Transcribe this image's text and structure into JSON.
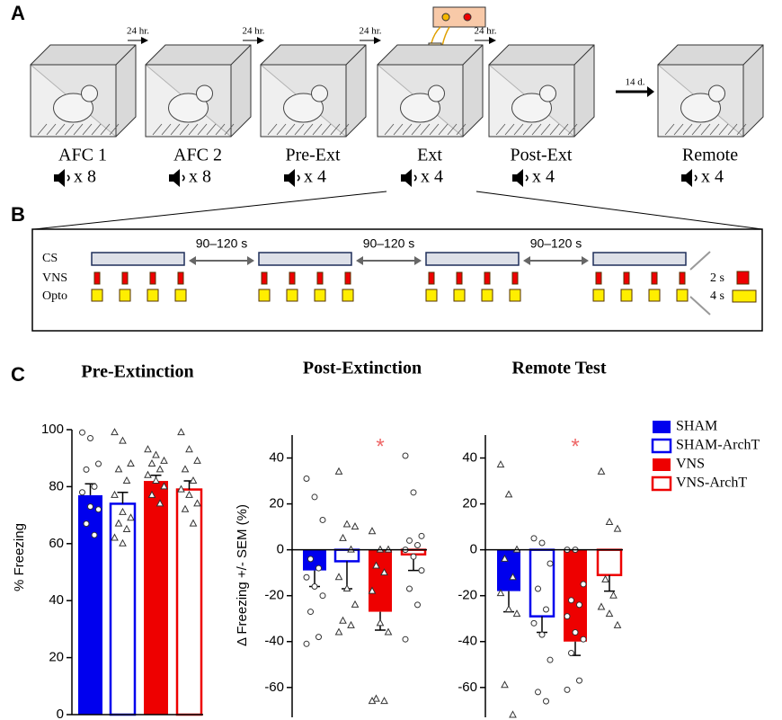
{
  "panels": {
    "a": "A",
    "b": "B",
    "c": "C"
  },
  "sessions": [
    {
      "label": "AFC 1",
      "tones": "x 8"
    },
    {
      "label": "AFC 2",
      "tones": "x 8"
    },
    {
      "label": "Pre-Ext",
      "tones": "x 4"
    },
    {
      "label": "Ext",
      "tones": "x 4"
    },
    {
      "label": "Post-Ext",
      "tones": "x 4"
    },
    {
      "label": "Remote",
      "tones": "x 4"
    }
  ],
  "intervals": [
    "24 hr.",
    "24 hr.",
    "24 hr.",
    "24 hr.",
    "14 d."
  ],
  "protocol": {
    "rows": [
      "CS",
      "VNS",
      "Opto"
    ],
    "iti": [
      "90–120 s",
      "90–120 s",
      "90–120 s"
    ],
    "durations": [
      "2 s",
      "4 s"
    ]
  },
  "chart_data": [
    {
      "type": "bar",
      "title": "Pre-Extinction",
      "ylabel": "% Freezing",
      "ylim": [
        0,
        100
      ],
      "yticks": [
        0,
        20,
        40,
        60,
        80,
        100
      ],
      "legend": false,
      "series": [
        {
          "name": "SHAM",
          "color": "#0000ee",
          "filled": true,
          "marker": "circle",
          "values": [
            77
          ],
          "errors": [
            4
          ],
          "points": [
            99,
            97,
            88,
            86,
            80,
            78,
            73,
            72,
            67,
            63
          ]
        },
        {
          "name": "SHAM-ArchT",
          "color": "#0000ee",
          "filled": false,
          "marker": "triangle",
          "values": [
            74
          ],
          "errors": [
            4
          ],
          "points": [
            99,
            96,
            88,
            86,
            82,
            77,
            71,
            69,
            67,
            65,
            62,
            60
          ]
        },
        {
          "name": "VNS",
          "color": "#ee0000",
          "filled": true,
          "marker": "triangle",
          "values": [
            82
          ],
          "errors": [
            2
          ],
          "points": [
            93,
            91,
            89,
            88,
            86,
            84,
            82,
            80,
            77,
            74
          ]
        },
        {
          "name": "VNS-ArchT",
          "color": "#ee0000",
          "filled": false,
          "marker": "triangle",
          "values": [
            79
          ],
          "errors": [
            3
          ],
          "points": [
            99,
            93,
            89,
            86,
            82,
            79,
            77,
            74,
            72,
            67
          ]
        }
      ]
    },
    {
      "type": "bar",
      "title": "Post-Extinction",
      "ylabel": "Δ Freezing +/- SEM (%)",
      "ylim": [
        -73,
        50
      ],
      "yticks": [
        -60,
        -40,
        -20,
        0,
        20,
        40
      ],
      "legend": false,
      "annotations": [
        {
          "text": "*",
          "series": "VNS"
        }
      ],
      "series": [
        {
          "name": "SHAM",
          "color": "#0000ee",
          "filled": true,
          "marker": "circle",
          "values": [
            -9
          ],
          "errors": [
            7
          ],
          "points": [
            31,
            23,
            13,
            -4,
            -8,
            -12,
            -16,
            -20,
            -27,
            -38,
            -41
          ]
        },
        {
          "name": "SHAM-ArchT",
          "color": "#0000ee",
          "filled": false,
          "marker": "triangle",
          "values": [
            -5
          ],
          "errors": [
            12
          ],
          "points": [
            34,
            11,
            10,
            5,
            0,
            -12,
            -17,
            -24,
            -31,
            -33,
            -36
          ]
        },
        {
          "name": "VNS",
          "color": "#ee0000",
          "filled": true,
          "marker": "triangle",
          "values": [
            -27
          ],
          "errors": [
            8
          ],
          "points": [
            8,
            0,
            0,
            -7,
            -10,
            -18,
            -32,
            -36,
            -65,
            -66,
            -66
          ]
        },
        {
          "name": "VNS-ArchT",
          "color": "#ee0000",
          "filled": false,
          "marker": "circle",
          "values": [
            -2
          ],
          "errors": [
            7
          ],
          "points": [
            41,
            25,
            6,
            4,
            2,
            0,
            -3,
            -9,
            -17,
            -24,
            -39
          ]
        }
      ]
    },
    {
      "type": "bar",
      "title": "Remote Test",
      "ylim": [
        -73,
        50
      ],
      "yticks": [
        -60,
        -40,
        -20,
        0,
        20,
        40
      ],
      "legend": true,
      "annotations": [
        {
          "text": "*",
          "series": "VNS"
        }
      ],
      "series": [
        {
          "name": "SHAM",
          "color": "#0000ee",
          "filled": true,
          "marker": "triangle",
          "values": [
            -18
          ],
          "errors": [
            9
          ],
          "points": [
            37,
            24,
            0,
            -4,
            -12,
            -19,
            -26,
            -28,
            -59,
            -72
          ]
        },
        {
          "name": "SHAM-ArchT",
          "color": "#0000ee",
          "filled": false,
          "marker": "circle",
          "values": [
            -29
          ],
          "errors": [
            7
          ],
          "points": [
            5,
            3,
            -6,
            -17,
            -26,
            -32,
            -37,
            -48,
            -62,
            -66
          ]
        },
        {
          "name": "VNS",
          "color": "#ee0000",
          "filled": true,
          "marker": "circle",
          "values": [
            -40
          ],
          "errors": [
            6
          ],
          "points": [
            0,
            0,
            -15,
            -22,
            -24,
            -29,
            -36,
            -39,
            -45,
            -57,
            -61
          ]
        },
        {
          "name": "VNS-ArchT",
          "color": "#ee0000",
          "filled": false,
          "marker": "triangle",
          "values": [
            -11
          ],
          "errors": [
            7
          ],
          "points": [
            34,
            12,
            9,
            -13,
            -20,
            -25,
            -28,
            -33
          ]
        }
      ]
    }
  ]
}
